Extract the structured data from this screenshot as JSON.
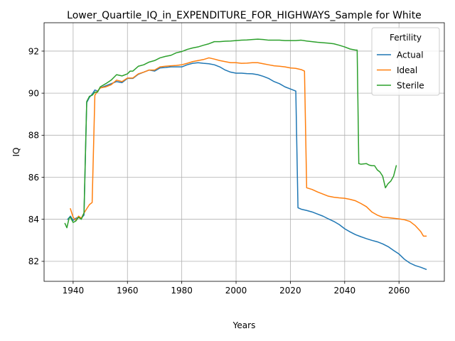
{
  "chart_data": {
    "type": "line",
    "title": "Lower_Quartile_IQ_in_EXPENDITURE_FOR_HIGHWAYS_Sample for White",
    "xlabel": "Years",
    "ylabel": "IQ",
    "xlim": [
      1929.3,
      2076.7
    ],
    "ylim": [
      81.05,
      93.35
    ],
    "xticks": [
      1940,
      1960,
      1980,
      2000,
      2020,
      2040,
      2060
    ],
    "yticks": [
      82,
      84,
      86,
      88,
      90,
      92
    ],
    "grid": true,
    "legend": {
      "title": "Fertility",
      "placement": "top-right"
    },
    "series": [
      {
        "name": "Actual",
        "color": "#1f77b4",
        "points": [
          [
            1938,
            84.0
          ],
          [
            1939,
            84.15
          ],
          [
            1940,
            83.95
          ],
          [
            1941,
            84.05
          ],
          [
            1942,
            84.1
          ],
          [
            1943,
            84.05
          ],
          [
            1944,
            84.2
          ],
          [
            1945,
            89.55
          ],
          [
            1946,
            89.8
          ],
          [
            1947,
            89.95
          ],
          [
            1948,
            90.15
          ],
          [
            1949,
            90.1
          ],
          [
            1950,
            90.25
          ],
          [
            1952,
            90.35
          ],
          [
            1954,
            90.45
          ],
          [
            1956,
            90.55
          ],
          [
            1958,
            90.5
          ],
          [
            1960,
            90.7
          ],
          [
            1962,
            90.7
          ],
          [
            1964,
            90.9
          ],
          [
            1966,
            91.0
          ],
          [
            1968,
            91.1
          ],
          [
            1970,
            91.05
          ],
          [
            1972,
            91.2
          ],
          [
            1974,
            91.22
          ],
          [
            1976,
            91.25
          ],
          [
            1978,
            91.25
          ],
          [
            1980,
            91.25
          ],
          [
            1982,
            91.35
          ],
          [
            1984,
            91.42
          ],
          [
            1986,
            91.45
          ],
          [
            1988,
            91.42
          ],
          [
            1990,
            91.4
          ],
          [
            1992,
            91.35
          ],
          [
            1994,
            91.25
          ],
          [
            1996,
            91.1
          ],
          [
            1998,
            91.0
          ],
          [
            2000,
            90.95
          ],
          [
            2002,
            90.95
          ],
          [
            2004,
            90.93
          ],
          [
            2006,
            90.92
          ],
          [
            2008,
            90.88
          ],
          [
            2010,
            90.8
          ],
          [
            2012,
            90.7
          ],
          [
            2014,
            90.55
          ],
          [
            2016,
            90.45
          ],
          [
            2018,
            90.3
          ],
          [
            2020,
            90.2
          ],
          [
            2022,
            90.1
          ],
          [
            2022.8,
            84.55
          ],
          [
            2024,
            84.48
          ],
          [
            2026,
            84.42
          ],
          [
            2028,
            84.35
          ],
          [
            2030,
            84.25
          ],
          [
            2032,
            84.15
          ],
          [
            2034,
            84.02
          ],
          [
            2036,
            83.9
          ],
          [
            2038,
            83.75
          ],
          [
            2040,
            83.55
          ],
          [
            2042,
            83.4
          ],
          [
            2044,
            83.27
          ],
          [
            2046,
            83.17
          ],
          [
            2048,
            83.08
          ],
          [
            2050,
            83.0
          ],
          [
            2052,
            82.93
          ],
          [
            2054,
            82.83
          ],
          [
            2056,
            82.7
          ],
          [
            2058,
            82.52
          ],
          [
            2060,
            82.35
          ],
          [
            2062,
            82.1
          ],
          [
            2064,
            81.92
          ],
          [
            2066,
            81.8
          ],
          [
            2068,
            81.72
          ],
          [
            2070,
            81.62
          ]
        ]
      },
      {
        "name": "Ideal",
        "color": "#ff7f0e",
        "points": [
          [
            1939,
            84.5
          ],
          [
            1940,
            84.1
          ],
          [
            1941,
            83.95
          ],
          [
            1942,
            84.15
          ],
          [
            1943,
            84.05
          ],
          [
            1944,
            84.3
          ],
          [
            1945,
            84.5
          ],
          [
            1946,
            84.7
          ],
          [
            1947,
            84.8
          ],
          [
            1948,
            89.9
          ],
          [
            1949,
            90.1
          ],
          [
            1950,
            90.25
          ],
          [
            1952,
            90.3
          ],
          [
            1954,
            90.4
          ],
          [
            1956,
            90.62
          ],
          [
            1958,
            90.55
          ],
          [
            1960,
            90.72
          ],
          [
            1962,
            90.72
          ],
          [
            1964,
            90.92
          ],
          [
            1966,
            91.0
          ],
          [
            1968,
            91.1
          ],
          [
            1970,
            91.1
          ],
          [
            1972,
            91.25
          ],
          [
            1974,
            91.28
          ],
          [
            1976,
            91.3
          ],
          [
            1978,
            91.32
          ],
          [
            1980,
            91.35
          ],
          [
            1982,
            91.42
          ],
          [
            1984,
            91.5
          ],
          [
            1986,
            91.55
          ],
          [
            1988,
            91.6
          ],
          [
            1990,
            91.68
          ],
          [
            1992,
            91.62
          ],
          [
            1994,
            91.55
          ],
          [
            1996,
            91.5
          ],
          [
            1998,
            91.45
          ],
          [
            2000,
            91.45
          ],
          [
            2002,
            91.42
          ],
          [
            2004,
            91.43
          ],
          [
            2006,
            91.45
          ],
          [
            2008,
            91.45
          ],
          [
            2010,
            91.4
          ],
          [
            2012,
            91.35
          ],
          [
            2014,
            91.3
          ],
          [
            2016,
            91.28
          ],
          [
            2018,
            91.25
          ],
          [
            2020,
            91.2
          ],
          [
            2022,
            91.18
          ],
          [
            2024,
            91.12
          ],
          [
            2025.2,
            91.05
          ],
          [
            2026,
            85.5
          ],
          [
            2028,
            85.42
          ],
          [
            2030,
            85.3
          ],
          [
            2032,
            85.2
          ],
          [
            2034,
            85.1
          ],
          [
            2036,
            85.05
          ],
          [
            2038,
            85.02
          ],
          [
            2040,
            85.0
          ],
          [
            2042,
            84.95
          ],
          [
            2044,
            84.88
          ],
          [
            2046,
            84.75
          ],
          [
            2048,
            84.6
          ],
          [
            2050,
            84.35
          ],
          [
            2052,
            84.2
          ],
          [
            2054,
            84.1
          ],
          [
            2056,
            84.08
          ],
          [
            2058,
            84.05
          ],
          [
            2060,
            84.02
          ],
          [
            2062,
            83.98
          ],
          [
            2064,
            83.9
          ],
          [
            2066,
            83.7
          ],
          [
            2068,
            83.42
          ],
          [
            2069,
            83.2
          ],
          [
            2070,
            83.2
          ]
        ]
      },
      {
        "name": "Sterile",
        "color": "#2ca02c",
        "points": [
          [
            1937,
            83.8
          ],
          [
            1937.7,
            83.6
          ],
          [
            1938.5,
            84.05
          ],
          [
            1939,
            84.1
          ],
          [
            1940,
            83.85
          ],
          [
            1941,
            83.92
          ],
          [
            1942,
            84.1
          ],
          [
            1943,
            84.0
          ],
          [
            1944,
            84.3
          ],
          [
            1945,
            89.6
          ],
          [
            1946,
            89.85
          ],
          [
            1947,
            89.9
          ],
          [
            1948,
            90.05
          ],
          [
            1949,
            90.05
          ],
          [
            1950,
            90.3
          ],
          [
            1952,
            90.45
          ],
          [
            1954,
            90.62
          ],
          [
            1956,
            90.88
          ],
          [
            1958,
            90.82
          ],
          [
            1960,
            90.92
          ],
          [
            1961,
            91.05
          ],
          [
            1962,
            91.05
          ],
          [
            1964,
            91.28
          ],
          [
            1966,
            91.35
          ],
          [
            1968,
            91.48
          ],
          [
            1970,
            91.55
          ],
          [
            1972,
            91.68
          ],
          [
            1974,
            91.75
          ],
          [
            1976,
            91.8
          ],
          [
            1978,
            91.92
          ],
          [
            1980,
            91.98
          ],
          [
            1982,
            92.08
          ],
          [
            1984,
            92.15
          ],
          [
            1986,
            92.2
          ],
          [
            1988,
            92.28
          ],
          [
            1990,
            92.35
          ],
          [
            1992,
            92.45
          ],
          [
            1994,
            92.45
          ],
          [
            1996,
            92.47
          ],
          [
            1998,
            92.48
          ],
          [
            2000,
            92.5
          ],
          [
            2002,
            92.52
          ],
          [
            2004,
            92.53
          ],
          [
            2006,
            92.55
          ],
          [
            2008,
            92.57
          ],
          [
            2010,
            92.55
          ],
          [
            2012,
            92.52
          ],
          [
            2014,
            92.52
          ],
          [
            2016,
            92.52
          ],
          [
            2018,
            92.5
          ],
          [
            2020,
            92.5
          ],
          [
            2022,
            92.5
          ],
          [
            2024,
            92.52
          ],
          [
            2026,
            92.48
          ],
          [
            2028,
            92.45
          ],
          [
            2030,
            92.42
          ],
          [
            2032,
            92.4
          ],
          [
            2034,
            92.38
          ],
          [
            2036,
            92.35
          ],
          [
            2038,
            92.28
          ],
          [
            2040,
            92.2
          ],
          [
            2042,
            92.1
          ],
          [
            2044,
            92.05
          ],
          [
            2044.6,
            92.05
          ],
          [
            2045.2,
            86.65
          ],
          [
            2046,
            86.62
          ],
          [
            2048,
            86.65
          ],
          [
            2049,
            86.58
          ],
          [
            2050,
            86.55
          ],
          [
            2051,
            86.55
          ],
          [
            2052,
            86.35
          ],
          [
            2053,
            86.25
          ],
          [
            2054,
            86.05
          ],
          [
            2055,
            85.5
          ],
          [
            2056,
            85.7
          ],
          [
            2057,
            85.82
          ],
          [
            2058,
            86.05
          ],
          [
            2059,
            86.55
          ]
        ]
      }
    ]
  }
}
